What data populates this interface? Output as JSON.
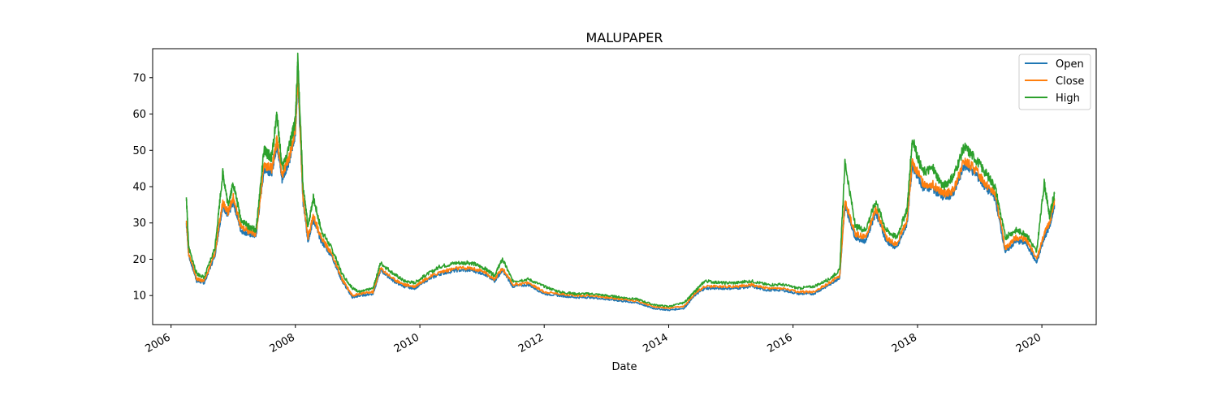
{
  "chart_data": {
    "type": "line",
    "title": "MALUPAPER",
    "xlabel": "Date",
    "ylabel": "",
    "x_type": "date",
    "xlim": [
      "2005-09-15",
      "2020-11-15"
    ],
    "ylim": [
      2.0,
      78.0
    ],
    "yticks": [
      10,
      20,
      30,
      40,
      50,
      60,
      70
    ],
    "xticks": [
      {
        "date": "2006-01-01",
        "label": "2006"
      },
      {
        "date": "2008-01-01",
        "label": "2008"
      },
      {
        "date": "2010-01-01",
        "label": "2010"
      },
      {
        "date": "2012-01-01",
        "label": "2012"
      },
      {
        "date": "2014-01-01",
        "label": "2014"
      },
      {
        "date": "2016-01-01",
        "label": "2016"
      },
      {
        "date": "2018-01-01",
        "label": "2018"
      },
      {
        "date": "2020-01-01",
        "label": "2020"
      }
    ],
    "grid": false,
    "legend": "top-right",
    "x": [
      "2006-04-01",
      "2006-04-15",
      "2006-06-01",
      "2006-07-15",
      "2006-09-15",
      "2006-11-01",
      "2006-12-01",
      "2007-01-01",
      "2007-02-15",
      "2007-04-01",
      "2007-05-15",
      "2007-07-01",
      "2007-08-15",
      "2007-09-15",
      "2007-10-15",
      "2007-12-01",
      "2008-01-01",
      "2008-01-15",
      "2008-02-15",
      "2008-03-15",
      "2008-04-15",
      "2008-06-01",
      "2008-08-01",
      "2008-10-01",
      "2008-12-01",
      "2009-01-15",
      "2009-04-01",
      "2009-05-15",
      "2009-08-01",
      "2009-10-01",
      "2009-12-01",
      "2010-02-01",
      "2010-05-01",
      "2010-08-01",
      "2010-11-01",
      "2011-01-15",
      "2011-03-15",
      "2011-05-01",
      "2011-07-01",
      "2011-10-01",
      "2012-01-01",
      "2012-04-01",
      "2012-07-01",
      "2012-10-01",
      "2013-01-01",
      "2013-04-01",
      "2013-07-01",
      "2013-10-01",
      "2014-01-01",
      "2014-04-01",
      "2014-06-01",
      "2014-08-01",
      "2014-11-01",
      "2015-02-01",
      "2015-05-01",
      "2015-08-01",
      "2015-11-01",
      "2016-02-01",
      "2016-05-01",
      "2016-08-01",
      "2016-10-01",
      "2016-11-01",
      "2017-01-01",
      "2017-03-01",
      "2017-05-01",
      "2017-07-01",
      "2017-09-01",
      "2017-11-01",
      "2017-12-01",
      "2018-02-01",
      "2018-04-01",
      "2018-06-01",
      "2018-08-01",
      "2018-10-01",
      "2018-12-01",
      "2019-02-01",
      "2019-04-01",
      "2019-06-01",
      "2019-08-01",
      "2019-10-01",
      "2019-12-01",
      "2020-01-15",
      "2020-02-15",
      "2020-03-15"
    ],
    "series": [
      {
        "name": "Open",
        "color": "#1f77b4",
        "values": [
          30.0,
          21.0,
          14.0,
          13.5,
          21.0,
          35.0,
          32.0,
          36.0,
          28.0,
          27.0,
          26.5,
          45.0,
          44.0,
          52.0,
          42.0,
          48.0,
          55.0,
          70.0,
          36.0,
          25.0,
          31.0,
          25.0,
          21.0,
          14.0,
          9.5,
          10.0,
          10.5,
          17.0,
          14.0,
          12.5,
          12.0,
          14.0,
          16.0,
          17.0,
          17.0,
          16.0,
          14.0,
          17.0,
          12.5,
          13.0,
          10.5,
          10.0,
          9.5,
          9.5,
          9.0,
          8.5,
          8.0,
          6.5,
          6.0,
          6.5,
          10.0,
          12.0,
          12.0,
          12.0,
          12.5,
          11.5,
          11.5,
          10.5,
          10.5,
          13.0,
          15.0,
          35.0,
          26.0,
          25.0,
          33.0,
          25.0,
          23.0,
          30.0,
          46.0,
          40.0,
          39.5,
          37.0,
          38.0,
          46.0,
          44.0,
          40.0,
          37.0,
          22.0,
          25.0,
          24.5,
          19.0,
          26.0,
          29.0,
          35.0
        ]
      },
      {
        "name": "Close",
        "color": "#ff7f0e",
        "values": [
          31.0,
          21.5,
          14.5,
          14.0,
          21.5,
          36.0,
          33.0,
          37.0,
          29.0,
          27.5,
          27.0,
          46.0,
          45.0,
          53.0,
          43.0,
          49.0,
          56.0,
          71.0,
          37.0,
          26.0,
          32.0,
          26.0,
          21.5,
          14.5,
          10.0,
          10.5,
          11.0,
          17.5,
          14.5,
          13.0,
          12.5,
          14.5,
          16.5,
          17.5,
          17.5,
          16.5,
          14.5,
          17.5,
          13.0,
          13.5,
          11.0,
          10.5,
          10.0,
          10.0,
          9.5,
          9.0,
          8.5,
          7.0,
          6.5,
          7.0,
          10.5,
          12.5,
          12.5,
          12.5,
          13.0,
          12.0,
          12.0,
          11.0,
          11.0,
          13.5,
          15.5,
          36.0,
          27.0,
          26.0,
          34.0,
          26.0,
          24.0,
          31.0,
          47.0,
          41.0,
          40.5,
          38.0,
          39.0,
          47.0,
          45.0,
          41.0,
          38.0,
          23.0,
          26.0,
          25.5,
          20.0,
          27.0,
          30.0,
          36.0
        ]
      },
      {
        "name": "High",
        "color": "#2ca02c",
        "values": [
          37.0,
          23.0,
          16.0,
          15.0,
          23.0,
          44.0,
          35.0,
          41.0,
          31.0,
          29.0,
          28.0,
          50.0,
          48.0,
          60.0,
          45.0,
          52.0,
          58.0,
          75.0,
          40.0,
          29.0,
          37.0,
          28.0,
          23.0,
          16.0,
          12.0,
          11.0,
          12.0,
          19.0,
          16.0,
          14.0,
          13.5,
          15.5,
          18.0,
          19.0,
          19.0,
          17.5,
          15.5,
          20.0,
          14.0,
          14.5,
          12.5,
          11.0,
          10.5,
          10.5,
          10.0,
          9.5,
          9.0,
          7.5,
          7.0,
          8.0,
          11.0,
          14.0,
          13.5,
          13.5,
          14.0,
          13.0,
          13.0,
          12.0,
          12.5,
          14.5,
          17.0,
          47.0,
          29.0,
          28.0,
          36.0,
          28.0,
          26.0,
          34.0,
          53.0,
          44.0,
          45.0,
          40.0,
          43.0,
          51.0,
          48.0,
          44.0,
          40.0,
          26.0,
          28.0,
          27.0,
          22.0,
          41.0,
          32.0,
          38.0
        ]
      }
    ]
  }
}
